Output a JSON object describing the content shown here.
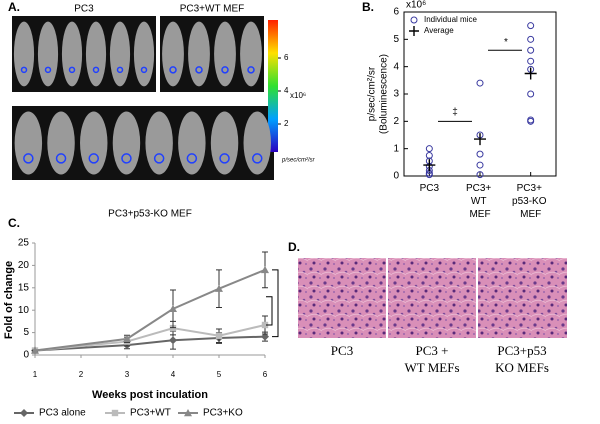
{
  "panel_labels": [
    "A.",
    "B.",
    "C.",
    "D."
  ],
  "panel_a": {
    "groups": [
      "PC3",
      "PC3+WT MEF",
      "PC3+p53-KO MEF"
    ],
    "colorbar": {
      "ticks": [
        6,
        4,
        2
      ],
      "multiplier": "x10⁶",
      "unit": "p/sec/cm²/sr"
    }
  },
  "panel_d": {
    "captions": [
      [
        "PC3"
      ],
      [
        "PC3 +",
        "WT MEFs"
      ],
      [
        "PC3+p53",
        "KO MEFs"
      ]
    ]
  },
  "chart_data": [
    {
      "type": "scatter",
      "ylabel": [
        "p/sec/cm²/sr",
        "(Boluminescence)"
      ],
      "y_multiplier": "x10⁶",
      "xlim": [
        0.5,
        3.5
      ],
      "xticks": [
        {
          "value": 1,
          "label": "PC3"
        },
        {
          "value": 2,
          "label": "PC3+ WT MEF"
        },
        {
          "value": 3,
          "label": "PC3+ p53-KO MEF"
        }
      ],
      "ylim": [
        0,
        6
      ],
      "yticks": [
        0,
        1,
        2,
        3,
        4,
        5,
        6
      ],
      "series": [
        {
          "name": "Individual mice",
          "color": "#3a3aa0",
          "marker": "circle",
          "x": [
            1,
            1,
            1,
            1,
            1,
            1,
            1,
            2,
            2,
            2,
            2,
            2,
            3,
            3,
            3,
            3,
            3,
            3,
            3,
            3
          ],
          "values": [
            0.05,
            0.1,
            0.2,
            0.35,
            0.55,
            0.75,
            1.0,
            0.05,
            0.4,
            0.8,
            1.5,
            3.4,
            2.0,
            2.05,
            3.0,
            3.9,
            4.2,
            4.6,
            5.0,
            5.5
          ]
        },
        {
          "name": "Average",
          "color": "#000000",
          "marker": "plus",
          "x": [
            1,
            2,
            3
          ],
          "values": [
            0.4,
            1.35,
            3.75
          ]
        }
      ],
      "annotations": [
        "‡",
        "*"
      ],
      "legend": "upper left"
    },
    {
      "type": "line",
      "xlabel": "Weeks post inculation",
      "ylabel": "Fold of change",
      "x": [
        1,
        3,
        4,
        5,
        6
      ],
      "xlim": [
        1,
        6
      ],
      "xticks": [
        1,
        2,
        3,
        4,
        5,
        6
      ],
      "ylim": [
        0,
        25
      ],
      "yticks": [
        0,
        5,
        10,
        15,
        20,
        25
      ],
      "legend": "bottom",
      "series": [
        {
          "name": "PC3 alone",
          "color": "#666666",
          "marker": "diamond",
          "values": [
            1,
            2.2,
            3.3,
            3.8,
            4.1
          ],
          "errors": [
            0.1,
            0.8,
            2.0,
            1.2,
            1.0
          ]
        },
        {
          "name": "PC3+WT",
          "color": "#bbbbbb",
          "marker": "square",
          "values": [
            1,
            3.0,
            6.0,
            4.3,
            6.7
          ],
          "errors": [
            0.1,
            1.0,
            1.5,
            1.5,
            2.0
          ]
        },
        {
          "name": "PC3+KO",
          "color": "#888888",
          "marker": "triangle",
          "values": [
            1,
            3.6,
            10.3,
            14.8,
            19.0
          ],
          "errors": [
            0.1,
            0.8,
            4.2,
            4.2,
            4.0
          ]
        }
      ]
    }
  ]
}
